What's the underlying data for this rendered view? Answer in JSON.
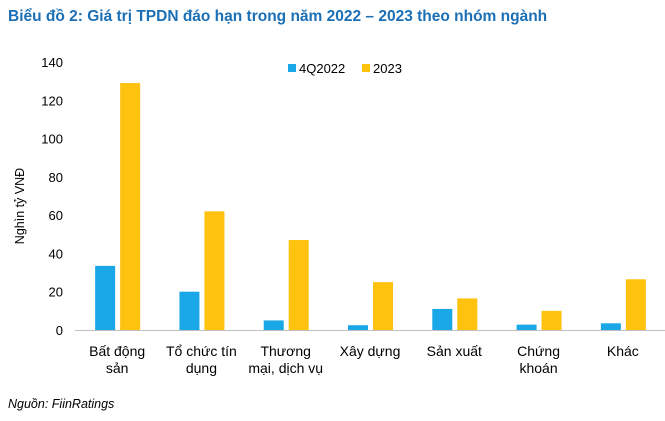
{
  "title": "Biểu đồ 2: Giá trị TPDN đáo hạn trong năm 2022 – 2023 theo nhóm ngành",
  "source": "Nguồn: FiinRatings",
  "chart_data": {
    "type": "bar",
    "categories": [
      [
        "Bất động",
        "sản"
      ],
      [
        "Tổ chức tín",
        "dụng"
      ],
      [
        "Thương",
        "mại, dịch vụ"
      ],
      [
        "Xây dựng"
      ],
      [
        "Sản xuất"
      ],
      [
        "Chứng",
        "khoán"
      ],
      [
        "Khác"
      ]
    ],
    "series": [
      {
        "name": "4Q2022",
        "color": "#1aa7e8",
        "values": [
          33.5,
          20,
          5,
          2.5,
          11,
          2.8,
          3.5
        ]
      },
      {
        "name": "2023",
        "color": "#ffc20e",
        "values": [
          129,
          62,
          47,
          25,
          16.5,
          10,
          26.5
        ]
      }
    ],
    "ylabel": "Nghìn tỷ VNĐ",
    "ylim": [
      0,
      140
    ],
    "yticks": [
      0,
      20,
      40,
      60,
      80,
      100,
      120,
      140
    ],
    "grid": false,
    "legend": "top-center"
  }
}
